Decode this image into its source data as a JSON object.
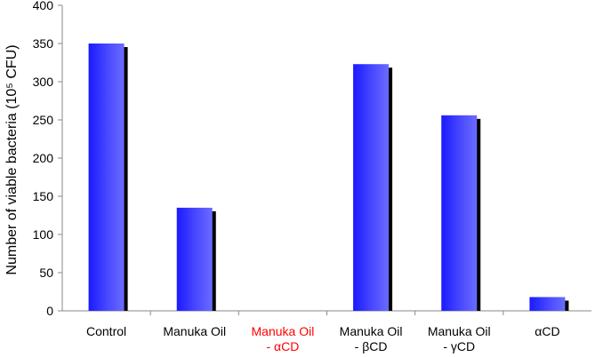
{
  "chart_data": {
    "type": "bar",
    "title": "",
    "xlabel": "",
    "ylabel": "Number of viable bacteria (10⁵ CFU)",
    "ylim": [
      0,
      400
    ],
    "yticks": [
      0,
      50,
      100,
      150,
      200,
      250,
      300,
      350,
      400
    ],
    "grid": false,
    "legend": "none",
    "categories": [
      {
        "lines": [
          "Control"
        ],
        "color": "#000000"
      },
      {
        "lines": [
          "Manuka Oil"
        ],
        "color": "#000000"
      },
      {
        "lines": [
          "Manuka Oil",
          "- αCD"
        ],
        "color": "#ff0000"
      },
      {
        "lines": [
          "Manuka Oil",
          "- βCD"
        ],
        "color": "#000000"
      },
      {
        "lines": [
          "Manuka Oil",
          "- γCD"
        ],
        "color": "#000000"
      },
      {
        "lines": [
          "αCD"
        ],
        "color": "#000000"
      }
    ],
    "values": [
      350,
      135,
      0,
      323,
      256,
      18
    ],
    "bar_color": "#3b3bff",
    "shadow_color": "#000000"
  }
}
